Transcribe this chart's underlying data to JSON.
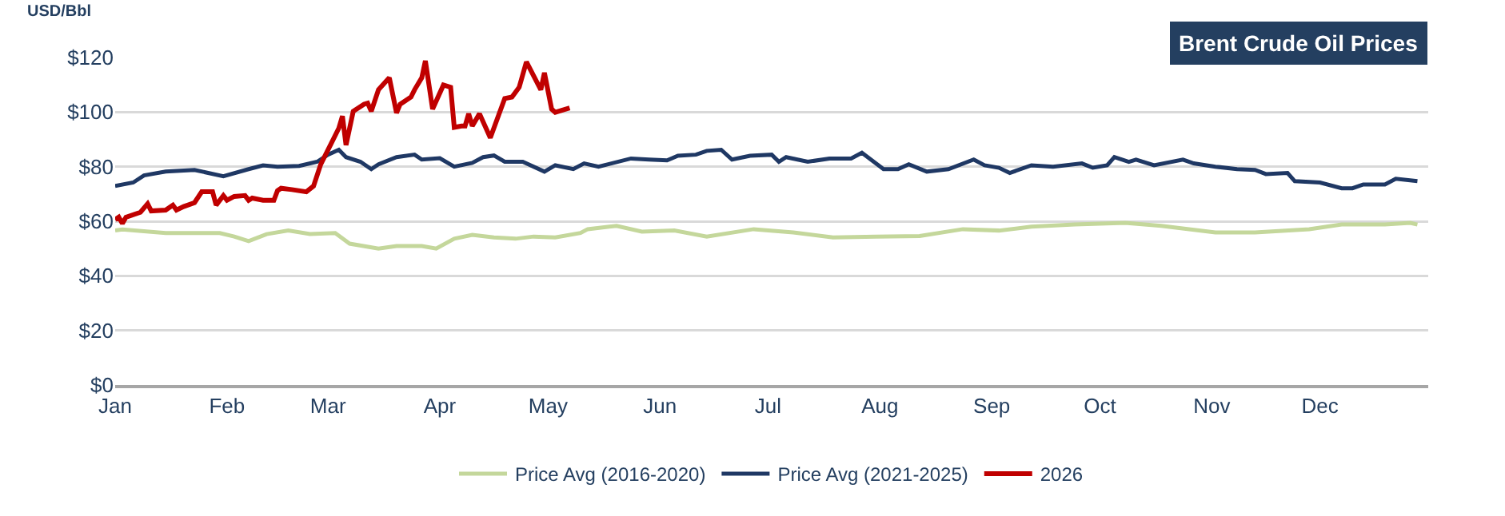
{
  "chart_data": {
    "type": "line",
    "title": "Brent Crude Oil Prices",
    "ylabel": "USD/Bbl",
    "xlim": [
      "--01-01",
      "--12-31"
    ],
    "xticks": [
      {
        "value": "--01-01",
        "label": "Jan"
      },
      {
        "value": "--02-01",
        "label": "Feb"
      },
      {
        "value": "--03-01",
        "label": "Mar"
      },
      {
        "value": "--04-01",
        "label": "Apr"
      },
      {
        "value": "--05-01",
        "label": "May"
      },
      {
        "value": "--06-01",
        "label": "Jun"
      },
      {
        "value": "--07-01",
        "label": "Jul"
      },
      {
        "value": "--08-01",
        "label": "Aug"
      },
      {
        "value": "--09-01",
        "label": "Sep"
      },
      {
        "value": "--10-01",
        "label": "Oct"
      },
      {
        "value": "--11-01",
        "label": "Nov"
      },
      {
        "value": "--12-01",
        "label": "Dec"
      }
    ],
    "ylim": [
      0,
      120
    ],
    "yticks": [
      {
        "value": 0,
        "label": "$0"
      },
      {
        "value": 20,
        "label": "$20"
      },
      {
        "value": 40,
        "label": "$40"
      },
      {
        "value": 60,
        "label": "$60"
      },
      {
        "value": 80,
        "label": "$80"
      },
      {
        "value": 100,
        "label": "$100"
      },
      {
        "value": 120,
        "label": "$120"
      }
    ],
    "grid": "y",
    "legend": "bottom",
    "marker": "none",
    "line_style": "solid",
    "series": [
      {
        "name": "Price Avg (2016-2020)",
        "color": "#c4d79b",
        "x": [
          "--01-01",
          "--01-03",
          "--01-15",
          "--01-30",
          "--02-03",
          "--02-07",
          "--02-12",
          "--02-18",
          "--02-24",
          "--03-03",
          "--03-07",
          "--03-15",
          "--03-20",
          "--03-27",
          "--03-31",
          "--04-05",
          "--04-10",
          "--04-16",
          "--04-22",
          "--04-27",
          "--05-03",
          "--05-10",
          "--05-12",
          "--05-20",
          "--05-27",
          "--06-05",
          "--06-14",
          "--06-27",
          "--07-08",
          "--07-19",
          "--07-31",
          "--08-12",
          "--08-24",
          "--09-03",
          "--09-12",
          "--09-24",
          "--10-08",
          "--10-18",
          "--11-02",
          "--11-13",
          "--11-28",
          "--12-07",
          "--12-19",
          "--12-26",
          "--12-28"
        ],
        "values": [
          56.6,
          57.0,
          55.7,
          55.7,
          54.4,
          52.7,
          55.3,
          56.6,
          55.3,
          55.7,
          51.8,
          50.0,
          50.9,
          50.9,
          50.0,
          53.6,
          55.0,
          54.1,
          53.6,
          54.4,
          54.1,
          55.7,
          57.1,
          58.3,
          56.2,
          56.6,
          54.4,
          57.1,
          55.9,
          54.1,
          54.4,
          54.6,
          57.1,
          56.6,
          58.0,
          58.8,
          59.4,
          58.3,
          55.9,
          55.9,
          57.1,
          58.8,
          58.8,
          59.4,
          58.8
        ]
      },
      {
        "name": "Price Avg (2021-2025)",
        "color": "#1f3864",
        "x": [
          "--01-01",
          "--01-06",
          "--01-09",
          "--01-15",
          "--01-23",
          "--01-31",
          "--02-07",
          "--02-11",
          "--02-15",
          "--02-21",
          "--02-26",
          "--03-01",
          "--03-04",
          "--03-06",
          "--03-10",
          "--03-13",
          "--03-15",
          "--03-20",
          "--03-25",
          "--03-27",
          "--04-01",
          "--04-05",
          "--04-10",
          "--04-13",
          "--04-16",
          "--04-19",
          "--04-24",
          "--04-30",
          "--05-03",
          "--05-08",
          "--05-11",
          "--05-15",
          "--05-24",
          "--05-29",
          "--06-03",
          "--06-06",
          "--06-11",
          "--06-14",
          "--06-18",
          "--06-21",
          "--06-26",
          "--07-02",
          "--07-04",
          "--07-06",
          "--07-12",
          "--07-18",
          "--07-24",
          "--07-27",
          "--08-02",
          "--08-06",
          "--08-09",
          "--08-14",
          "--08-20",
          "--08-27",
          "--08-30",
          "--09-03",
          "--09-06",
          "--09-12",
          "--09-18",
          "--09-26",
          "--09-29",
          "--10-03",
          "--10-05",
          "--10-09",
          "--10-11",
          "--10-16",
          "--10-24",
          "--10-27",
          "--11-02",
          "--11-08",
          "--11-13",
          "--11-16",
          "--11-22",
          "--11-24",
          "--12-01",
          "--12-07",
          "--12-10",
          "--12-13",
          "--12-19",
          "--12-22",
          "--12-28"
        ],
        "values": [
          72.9,
          74.2,
          76.8,
          78.2,
          78.8,
          76.5,
          79.1,
          80.5,
          80.0,
          80.3,
          81.8,
          84.4,
          86.2,
          83.5,
          81.8,
          79.1,
          80.9,
          83.5,
          84.4,
          82.6,
          83.1,
          80.0,
          81.4,
          83.5,
          84.1,
          81.8,
          81.8,
          78.2,
          80.5,
          79.1,
          81.2,
          80.0,
          83.0,
          82.6,
          82.3,
          84.0,
          84.4,
          85.8,
          86.2,
          82.6,
          84.0,
          84.4,
          81.8,
          83.5,
          81.8,
          83.0,
          83.0,
          85.1,
          79.1,
          79.1,
          80.9,
          78.2,
          79.1,
          82.6,
          80.5,
          79.6,
          77.7,
          80.5,
          80.0,
          81.2,
          79.6,
          80.5,
          83.5,
          81.8,
          82.6,
          80.5,
          82.6,
          81.2,
          80.0,
          79.1,
          78.8,
          77.3,
          77.7,
          74.7,
          74.2,
          72.1,
          72.1,
          73.5,
          73.5,
          75.6,
          74.7
        ]
      },
      {
        "name": "2026",
        "color": "#c00000",
        "x": [
          "--01-01",
          "--01-02",
          "--01-03",
          "--01-04",
          "--01-08",
          "--01-10",
          "--01-11",
          "--01-15",
          "--01-17",
          "--01-18",
          "--01-20",
          "--01-23",
          "--01-25",
          "--01-28",
          "--01-29",
          "--01-31",
          "--02-01",
          "--02-03",
          "--02-06",
          "--02-07",
          "--02-08",
          "--02-11",
          "--02-14",
          "--02-15",
          "--02-16",
          "--02-19",
          "--02-23",
          "--02-25",
          "--02-27",
          "--03-02",
          "--03-04",
          "--03-05",
          "--03-06",
          "--03-08",
          "--03-11",
          "--03-12",
          "--03-13",
          "--03-15",
          "--03-18",
          "--03-20",
          "--03-21",
          "--03-24",
          "--03-25",
          "--03-27",
          "--03-28",
          "--03-30",
          "--04-02",
          "--04-04",
          "--04-05",
          "--04-07",
          "--04-08",
          "--04-09",
          "--04-10",
          "--04-12",
          "--04-15",
          "--04-19",
          "--04-21",
          "--04-23",
          "--04-25",
          "--04-29",
          "--04-30",
          "--05-02",
          "--05-03",
          "--05-07"
        ],
        "values": [
          60.6,
          61.5,
          59.2,
          61.5,
          63.3,
          66.4,
          63.8,
          64.1,
          65.9,
          64.1,
          65.4,
          66.8,
          70.8,
          70.8,
          65.9,
          69.4,
          67.7,
          69.1,
          69.4,
          67.7,
          68.5,
          67.7,
          67.7,
          71.2,
          72.1,
          71.6,
          70.8,
          72.9,
          80.9,
          88.8,
          94.1,
          98.5,
          87.9,
          100.3,
          102.9,
          103.3,
          100.3,
          108.2,
          112.6,
          99.7,
          102.9,
          105.5,
          108.2,
          112.6,
          118.8,
          101.1,
          109.9,
          109.1,
          94.4,
          94.9,
          94.9,
          99.4,
          94.9,
          99.4,
          90.6,
          105.0,
          105.5,
          109.1,
          118.4,
          108.2,
          114.4,
          101.1,
          99.9,
          101.5
        ]
      }
    ]
  }
}
